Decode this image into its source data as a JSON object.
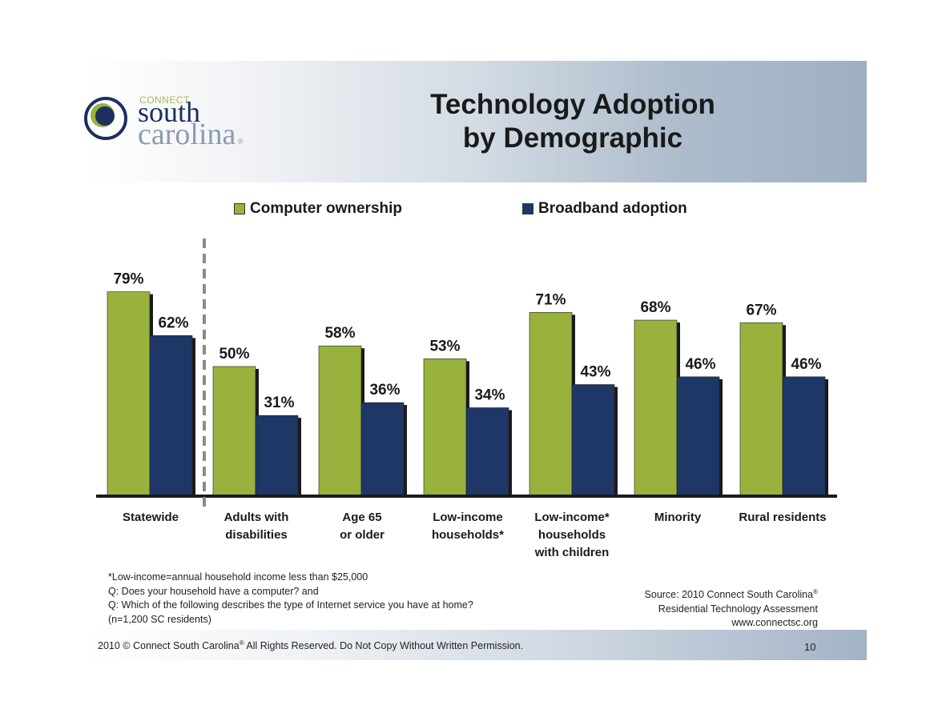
{
  "header": {
    "logo": {
      "connect": "CONNECT",
      "south": "south",
      "carolina": "carolina",
      "registered": "®"
    },
    "title_line1": "Technology Adoption",
    "title_line2": "by Demographic"
  },
  "colors": {
    "computer_ownership": "#98b23d",
    "broadband_adoption": "#1e3766",
    "shadow": "#1a1a1a",
    "divider": "#8a8a8a"
  },
  "chart_data": {
    "type": "bar",
    "title": "Technology Adoption by Demographic",
    "xlabel": "",
    "ylabel": "",
    "ylim": [
      0,
      100
    ],
    "grid": false,
    "legend_position": "top",
    "categories": [
      "Statewide",
      "Adults with\ndisabilities",
      "Age 65\nor older",
      "Low-income\nhouseholds*",
      "Low-income*\nhouseholds\nwith children",
      "Minority",
      "Rural residents"
    ],
    "series": [
      {
        "name": "Computer ownership",
        "values": [
          79,
          50,
          58,
          53,
          71,
          68,
          67
        ],
        "labels": [
          "79%",
          "50%",
          "58%",
          "53%",
          "71%",
          "68%",
          "67%"
        ]
      },
      {
        "name": "Broadband adoption",
        "values": [
          62,
          31,
          36,
          34,
          43,
          46,
          46
        ],
        "labels": [
          "62%",
          "31%",
          "36%",
          "34%",
          "43%",
          "46%",
          "46%"
        ]
      }
    ],
    "annotations": [
      "dashed divider between Statewide and the demographic groups"
    ]
  },
  "notes": [
    "*Low-income=annual household income less than $25,000",
    "Q: Does your household have a computer? and",
    "Q: Which of the following describes the type of Internet service you have at home?",
    "(n=1,200 SC residents)"
  ],
  "source": {
    "line1": "Source: 2010 Connect South Carolina",
    "line1_sup": "®",
    "line2": "Residential Technology Assessment",
    "line3": "www.connectsc.org"
  },
  "footer": {
    "text_before": "2010 © Connect South Carolina",
    "sup": "®",
    "text_after": " All Rights Reserved.  Do Not Copy Without Written Permission.",
    "page_number": "10"
  }
}
